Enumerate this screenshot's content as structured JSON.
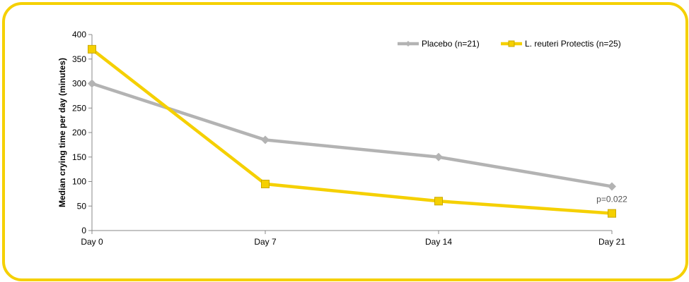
{
  "chart_data": {
    "type": "line",
    "categories": [
      "Day 0",
      "Day 7",
      "Day 14",
      "Day 21"
    ],
    "ylabel": "Median crying time per day (minutes)",
    "ylim": [
      0,
      400
    ],
    "yticks": [
      0,
      50,
      100,
      150,
      200,
      250,
      300,
      350,
      400
    ],
    "grid": false,
    "legend_position": "top-right",
    "series": [
      {
        "name": "Placebo (n=21)",
        "values": [
          300,
          185,
          150,
          90
        ],
        "color": "#b3b3b3",
        "marker": "diamond"
      },
      {
        "name": "L. reuteri Protectis (n=25)",
        "values": [
          370,
          95,
          60,
          35
        ],
        "color": "#f5d000",
        "marker": "square"
      }
    ],
    "annotations": [
      {
        "text": "p=0.022",
        "category": "Day 21",
        "value": 90
      }
    ]
  }
}
